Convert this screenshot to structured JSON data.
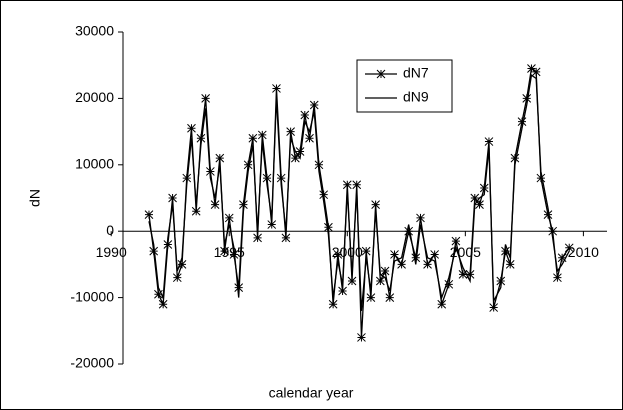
{
  "chart_data": {
    "type": "line",
    "x_label": "calendar year",
    "y_label": "dN",
    "x": [
      1991.6,
      1991.8,
      1992.0,
      1992.2,
      1992.4,
      1992.6,
      1992.8,
      1993.0,
      1993.2,
      1993.4,
      1993.6,
      1993.8,
      1994.0,
      1994.2,
      1994.4,
      1994.6,
      1994.8,
      1995.0,
      1995.2,
      1995.4,
      1995.6,
      1995.8,
      1996.0,
      1996.2,
      1996.4,
      1996.6,
      1996.8,
      1997.0,
      1997.2,
      1997.4,
      1997.6,
      1997.8,
      1998.0,
      1998.2,
      1998.4,
      1998.6,
      1998.8,
      1999.0,
      1999.2,
      1999.4,
      1999.6,
      1999.8,
      2000.0,
      2000.2,
      2000.4,
      2000.6,
      2000.8,
      2001.0,
      2001.2,
      2001.4,
      2001.6,
      2001.8,
      2002.0,
      2002.3,
      2002.6,
      2002.9,
      2003.1,
      2003.4,
      2003.7,
      2004.0,
      2004.3,
      2004.6,
      2004.9,
      2005.2,
      2005.4,
      2005.6,
      2005.8,
      2006.0,
      2006.2,
      2006.5,
      2006.7,
      2006.9,
      2007.1,
      2007.4,
      2007.6,
      2007.8,
      2008.0,
      2008.2,
      2008.5,
      2008.7,
      2008.9,
      2009.1,
      2009.4
    ],
    "series": [
      {
        "name": "dN7",
        "color": "#000000",
        "marker": "asterisk",
        "values": [
          2500,
          -3000,
          -9500,
          -11000,
          -2000,
          5000,
          -7000,
          -5000,
          8000,
          15500,
          3000,
          14000,
          20000,
          9000,
          4000,
          11000,
          -3000,
          2000,
          -3500,
          -8500,
          4000,
          10000,
          14000,
          -1000,
          14500,
          8000,
          1000,
          21500,
          8000,
          -1000,
          15000,
          11000,
          12000,
          17500,
          14000,
          19000,
          10000,
          5500,
          600,
          -11000,
          -3500,
          -9000,
          7000,
          -7500,
          7000,
          -16000,
          -3000,
          -10000,
          4000,
          -7500,
          -6000,
          -10000,
          -3500,
          -5000,
          0,
          -4000,
          2000,
          -5000,
          -3500,
          -11000,
          -8000,
          -1500,
          -6500,
          -6500,
          5000,
          4000,
          6500,
          13500,
          -11500,
          -7500,
          -3000,
          -5000,
          11000,
          16500,
          20000,
          24500,
          24000,
          8000,
          2500,
          0,
          -7000,
          -4000,
          -2500
        ]
      },
      {
        "name": "dN9",
        "color": "#000000",
        "marker": "none",
        "values": [
          1500,
          -2000,
          -8500,
          -10000,
          -1000,
          4000,
          -6000,
          -4000,
          7000,
          14000,
          4000,
          13000,
          18500,
          8000,
          5000,
          10000,
          -2000,
          1000,
          -2500,
          -10000,
          3000,
          9000,
          13000,
          0,
          13500,
          7000,
          2000,
          20000,
          7000,
          0,
          14000,
          12000,
          11000,
          16500,
          15000,
          18000,
          9000,
          4500,
          -500,
          -10000,
          -4500,
          -8000,
          6000,
          -6500,
          6000,
          -12000,
          -4000,
          -9000,
          3000,
          -6500,
          -7000,
          -9000,
          -4500,
          -4000,
          1000,
          -5000,
          1000,
          -4000,
          -4500,
          -10000,
          -7000,
          -2500,
          -5500,
          -7500,
          4000,
          5000,
          5500,
          12500,
          -10500,
          -8500,
          -2000,
          -4000,
          10000,
          15500,
          19000,
          23500,
          23000,
          9000,
          3500,
          -1000,
          -6000,
          -5000,
          -3000
        ]
      }
    ],
    "xlim": [
      1990.5,
      2011
    ],
    "xticks": [
      1990,
      1995,
      2000,
      2005,
      2010
    ],
    "ylim": [
      -20000,
      30000
    ],
    "yticks": [
      -20000,
      -10000,
      0,
      10000,
      20000,
      30000
    ],
    "legend": "upper-center"
  }
}
